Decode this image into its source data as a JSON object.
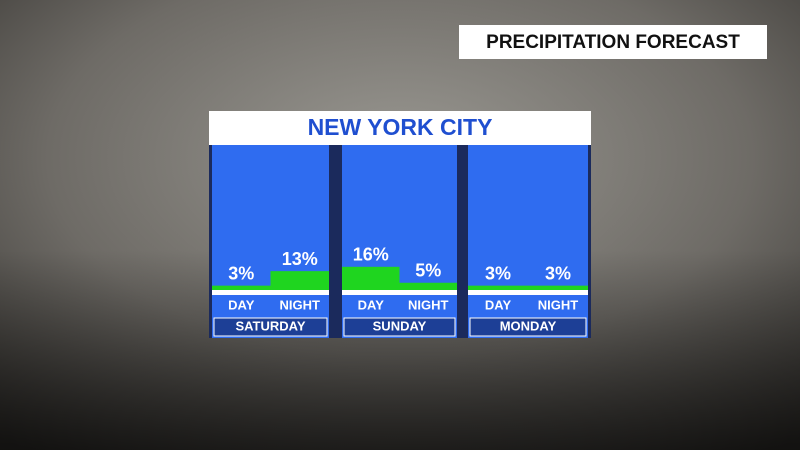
{
  "header": "PRECIPITATION FORECAST",
  "chart_data": {
    "type": "bar",
    "title": "NEW YORK CITY",
    "categories": [
      "SATURDAY",
      "SUNDAY",
      "MONDAY"
    ],
    "series": [
      {
        "name": "DAY",
        "color": "#1fd51f",
        "values": [
          3,
          16,
          3
        ],
        "value_labels": [
          "3%",
          "16%",
          "3%"
        ]
      },
      {
        "name": "NIGHT",
        "color": "#1fd51f",
        "values": [
          13,
          5,
          3
        ],
        "value_labels": [
          "13%",
          "5%",
          "3%"
        ]
      }
    ],
    "ylim": [
      0,
      100
    ]
  }
}
